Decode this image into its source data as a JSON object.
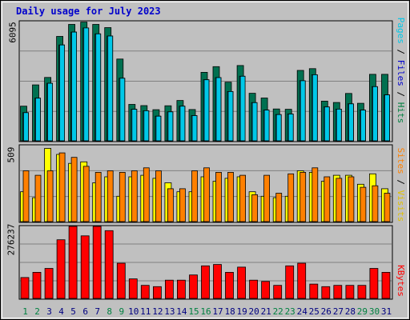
{
  "title": "Daily usage for July 2023",
  "colors": {
    "background": "#c0c0c0",
    "plot_background": "#c0c0c0",
    "grid": "#808080",
    "hits": "#007050",
    "files": "#00e0ff",
    "pages": "#00c8e8",
    "visits": "#ffff00",
    "sites": "#ff8000",
    "kbytes": "#ff0000",
    "title": "#0000cc",
    "weekend_day": "#008040",
    "weekday": "#000080"
  },
  "legends": {
    "top": [
      {
        "text": "Pages",
        "color": "#00c8e8"
      },
      {
        "text": " / ",
        "color": "#000000"
      },
      {
        "text": "Files",
        "color": "#0000cc"
      },
      {
        "text": " / ",
        "color": "#000000"
      },
      {
        "text": "Hits",
        "color": "#008040"
      }
    ],
    "middle": [
      {
        "text": "Sites",
        "color": "#ff8000"
      },
      {
        "text": " / ",
        "color": "#000000"
      },
      {
        "text": "Visits",
        "color": "#e0c000"
      }
    ],
    "bottom": [
      {
        "text": "KBytes",
        "color": "#ff0000"
      }
    ]
  },
  "chart_data": [
    {
      "type": "bar",
      "title": "Daily usage for July 2023",
      "ymax_label": "6095",
      "ylim": [
        0,
        6095
      ],
      "categories": [
        "1",
        "2",
        "3",
        "4",
        "5",
        "6",
        "7",
        "8",
        "9",
        "10",
        "11",
        "12",
        "13",
        "14",
        "15",
        "16",
        "17",
        "18",
        "19",
        "20",
        "21",
        "22",
        "23",
        "24",
        "25",
        "26",
        "27",
        "28",
        "29",
        "30",
        "31"
      ],
      "weekend_days": [
        "1",
        "2",
        "8",
        "9",
        "15",
        "16",
        "22",
        "23",
        "29",
        "30"
      ],
      "series": [
        {
          "name": "Hits",
          "values": [
            1770,
            2860,
            3240,
            5340,
            5950,
            6070,
            5950,
            5790,
            4180,
            1860,
            1800,
            1590,
            1790,
            2060,
            1600,
            3500,
            3790,
            3000,
            3850,
            2430,
            2190,
            1630,
            1610,
            3600,
            3690,
            2030,
            1960,
            2420,
            1920,
            3400,
            3400
          ]
        },
        {
          "name": "Files",
          "values": [
            1440,
            2180,
            2940,
            4900,
            5560,
            5770,
            5470,
            5360,
            3200,
            1610,
            1540,
            1260,
            1480,
            1770,
            1290,
            3120,
            3230,
            2520,
            3300,
            1950,
            1570,
            1340,
            1370,
            3070,
            3380,
            1730,
            1620,
            1890,
            1570,
            2770,
            2350
          ]
        },
        {
          "name": "Pages",
          "values": [
            1440,
            2180,
            2940,
            4900,
            5560,
            5770,
            5470,
            5360,
            3200,
            1610,
            1540,
            1260,
            1480,
            1770,
            1290,
            3120,
            3230,
            2520,
            3300,
            1950,
            1570,
            1340,
            1370,
            3070,
            3380,
            1730,
            1620,
            1890,
            1570,
            2770,
            2350
          ]
        }
      ]
    },
    {
      "type": "bar",
      "ymax_label": "509",
      "ylim": [
        0,
        509
      ],
      "categories": [
        "1",
        "2",
        "3",
        "4",
        "5",
        "6",
        "7",
        "8",
        "9",
        "10",
        "11",
        "12",
        "13",
        "14",
        "15",
        "16",
        "17",
        "18",
        "19",
        "20",
        "21",
        "22",
        "23",
        "24",
        "25",
        "26",
        "27",
        "28",
        "29",
        "30",
        "31"
      ],
      "series": [
        {
          "name": "Visits",
          "values": [
            200,
            160,
            490,
            450,
            390,
            400,
            260,
            300,
            170,
            300,
            310,
            290,
            260,
            200,
            200,
            300,
            270,
            290,
            300,
            200,
            170,
            160,
            170,
            340,
            330,
            270,
            310,
            310,
            250,
            320,
            220
          ]
        },
        {
          "name": "Sites",
          "values": [
            340,
            310,
            340,
            460,
            430,
            370,
            330,
            340,
            330,
            340,
            360,
            340,
            220,
            220,
            340,
            360,
            330,
            330,
            310,
            180,
            310,
            190,
            320,
            330,
            360,
            300,
            290,
            300,
            230,
            240,
            190
          ]
        }
      ]
    },
    {
      "type": "bar",
      "ymax_label": "276237",
      "ylim": [
        0,
        276237
      ],
      "categories": [
        "1",
        "2",
        "3",
        "4",
        "5",
        "6",
        "7",
        "8",
        "9",
        "10",
        "11",
        "12",
        "13",
        "14",
        "15",
        "16",
        "17",
        "18",
        "19",
        "20",
        "21",
        "22",
        "23",
        "24",
        "25",
        "26",
        "27",
        "28",
        "29",
        "30",
        "31"
      ],
      "series": [
        {
          "name": "KBytes",
          "values": [
            80000,
            100000,
            115000,
            225000,
            276237,
            240000,
            276237,
            260000,
            135000,
            75000,
            50000,
            45000,
            70000,
            70000,
            90000,
            125000,
            130000,
            100000,
            120000,
            70000,
            65000,
            50000,
            125000,
            135000,
            55000,
            45000,
            50000,
            50000,
            50000,
            115000,
            100000
          ]
        }
      ]
    }
  ]
}
